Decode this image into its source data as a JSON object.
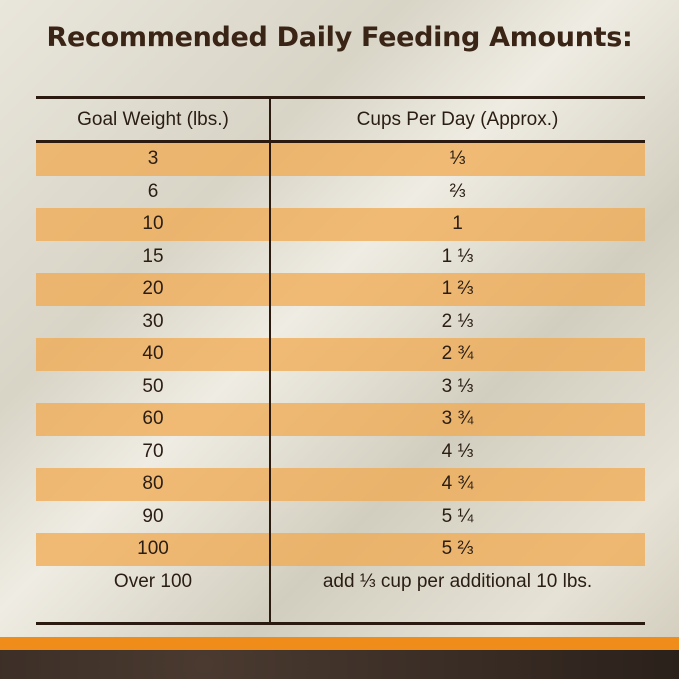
{
  "title": "Recommended Daily Feeding Amounts:",
  "headers": [
    "Goal Weight (lbs.)",
    "Cups Per Day (Approx.)"
  ],
  "rows": [
    [
      "3",
      "⅓"
    ],
    [
      "6",
      "⅔"
    ],
    [
      "10",
      "1"
    ],
    [
      "15",
      "1 ⅓"
    ],
    [
      "20",
      "1 ⅔"
    ],
    [
      "30",
      "2 ⅓"
    ],
    [
      "40",
      "2 ¾"
    ],
    [
      "50",
      "3 ⅓"
    ],
    [
      "60",
      "3 ¾"
    ],
    [
      "70",
      "4 ⅓"
    ],
    [
      "80",
      "4 ¾"
    ],
    [
      "90",
      "5 ¼"
    ],
    [
      "100",
      "5 ⅔"
    ],
    [
      "Over 100",
      "add ⅓ cup per additional 10 lbs."
    ]
  ],
  "colors": {
    "highlight": "#f0aa50",
    "accent": "#f08c1a",
    "text": "#2a1d14"
  }
}
